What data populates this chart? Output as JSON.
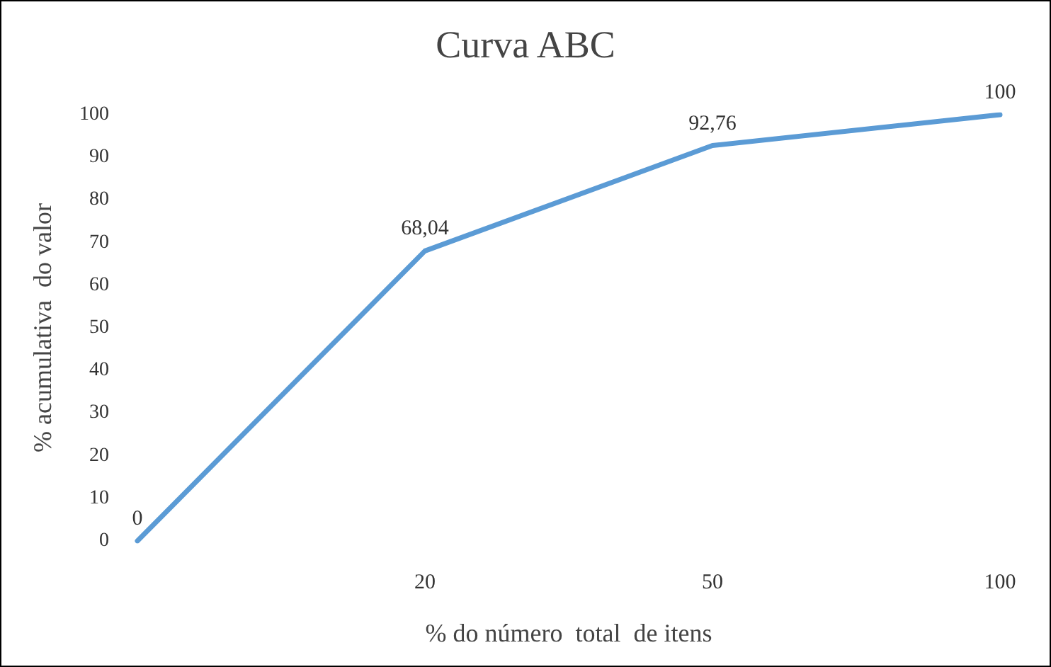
{
  "chart_data": {
    "type": "line",
    "title": "Curva ABC",
    "xlabel": "% do número  total  de itens",
    "ylabel": "% acumulativa  do valor",
    "categories": [
      null,
      "20",
      "50",
      "100"
    ],
    "series": [
      {
        "color": "#5b9bd5",
        "values": [
          0,
          68.04,
          92.76,
          100
        ],
        "value_labels": [
          "0",
          "68,04",
          "92,76",
          "100"
        ]
      }
    ],
    "ylim": [
      0,
      100
    ],
    "yticks": [
      0,
      10,
      20,
      30,
      40,
      50,
      60,
      70,
      80,
      90,
      100
    ],
    "grid": false,
    "marker": "none",
    "line_style": "solid"
  }
}
